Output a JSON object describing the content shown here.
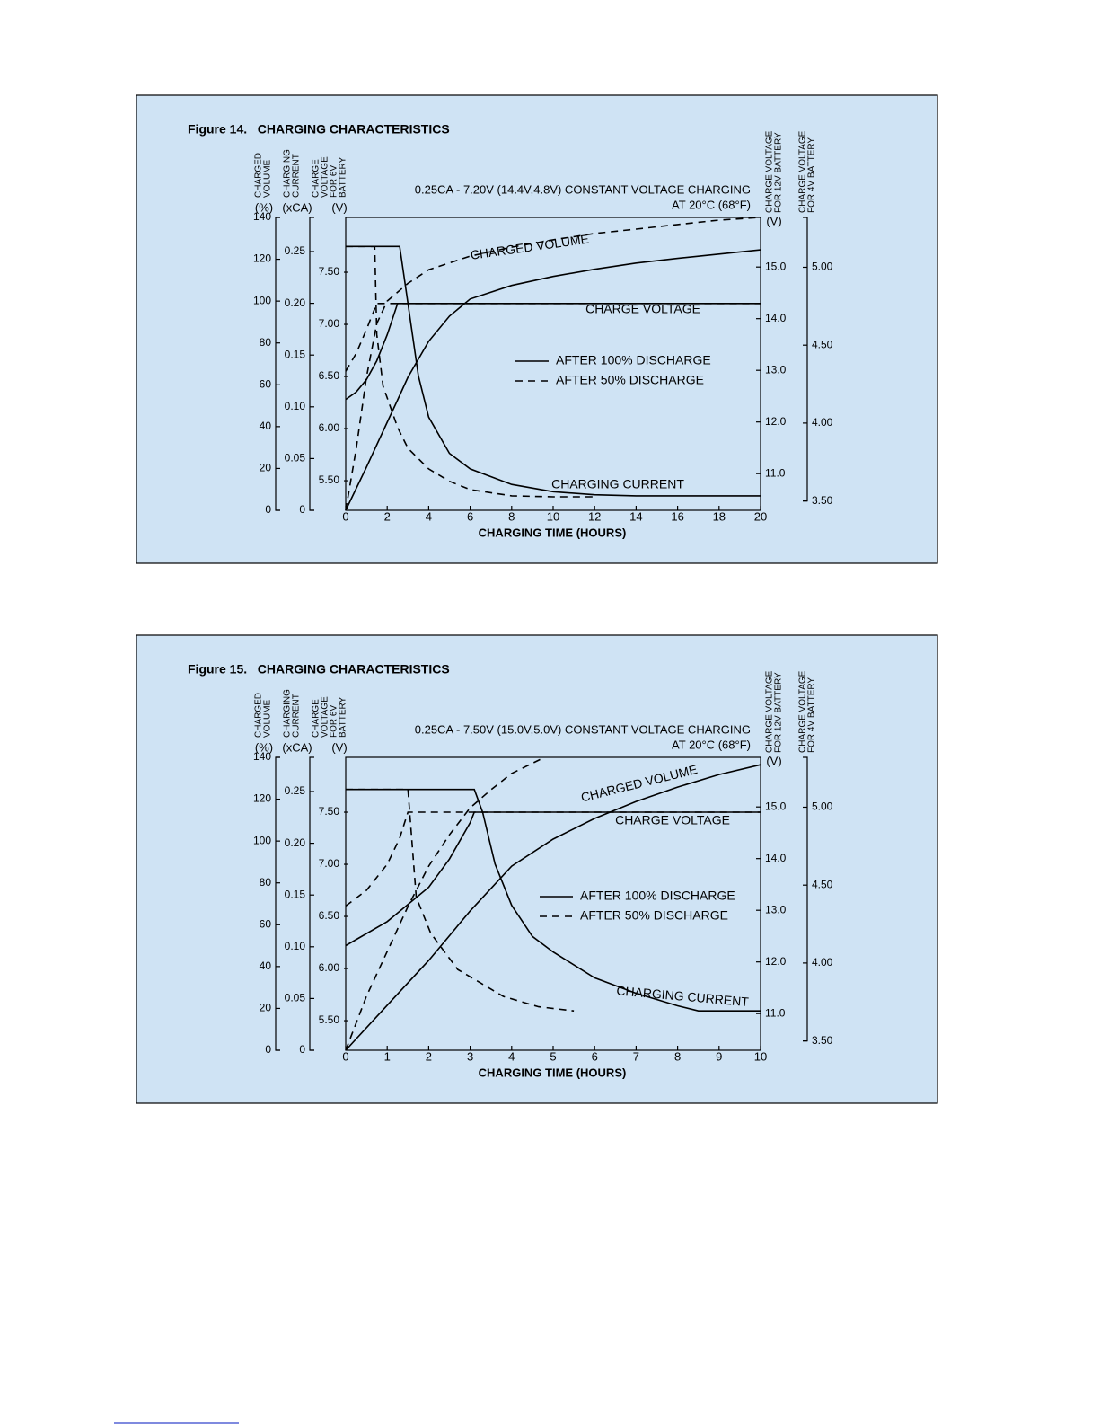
{
  "chart_data": [
    {
      "type": "line",
      "title": "Figure 14.   CHARGING CHARACTERISTICS",
      "subtitle": [
        "0.25CA - 7.20V (14.4V,4.8V) CONSTANT VOLTAGE CHARGING",
        "AT 20°C (68°F)"
      ],
      "xlabel": "CHARGING TIME (HOURS)",
      "xlim": [
        0,
        20
      ],
      "xticks": [
        0,
        2,
        4,
        6,
        8,
        10,
        12,
        14,
        16,
        18,
        20
      ],
      "axes": [
        {
          "label": [
            "CHARGED",
            "VOLUME"
          ],
          "unit": "(%)",
          "ylim": [
            0,
            140
          ],
          "yticks": [
            0,
            20,
            40,
            60,
            80,
            100,
            120,
            140
          ]
        },
        {
          "label": [
            "CHARGING",
            "CURRENT"
          ],
          "unit": "(xCA)",
          "ylim": [
            0,
            0.283
          ],
          "yticks": [
            0,
            0.05,
            {
              "value": 0.1,
              "label": "0.10"
            },
            0.15,
            {
              "value": 0.2,
              "label": "0.20"
            },
            0.25
          ]
        },
        {
          "label": [
            "CHARGE",
            "VOLTAGE",
            "FOR 6V",
            "BATTERY"
          ],
          "unit": "(V)",
          "ylim": [
            5.216,
            8.026
          ],
          "yticks": [
            {
              "value": 5.5,
              "label": "5.50"
            },
            {
              "value": 6,
              "label": "6.00"
            },
            {
              "value": 6.5,
              "label": "6.50"
            },
            {
              "value": 7,
              "label": "7.00"
            },
            {
              "value": 7.5,
              "label": "7.50"
            }
          ]
        },
        {
          "label": [
            "CHARGE VOLTAGE",
            "FOR 12V BATTERY"
          ],
          "unit": "(V)",
          "ylim": [
            10.29,
            15.96
          ],
          "yticks": [
            {
              "value": 11,
              "label": "11.0"
            },
            {
              "value": 12,
              "label": "12.0"
            },
            {
              "value": 13,
              "label": "13.0"
            },
            {
              "value": 14,
              "label": "14.0"
            },
            {
              "value": 15,
              "label": "15.0"
            }
          ]
        },
        {
          "label": [
            "CHARGE VOLTAGE",
            "FOR 4V BATTERY"
          ],
          "ylim": [
            3.44,
            5.32
          ],
          "yticks": [
            {
              "value": 3.5,
              "label": "3.50"
            },
            {
              "value": 4,
              "label": "4.00"
            },
            {
              "value": 4.5,
              "label": "4.50"
            },
            {
              "value": 5,
              "label": "5.00"
            }
          ]
        }
      ],
      "legend": [
        "AFTER 100% DISCHARGE",
        "AFTER 50% DISCHARGE"
      ],
      "legend_dash": [
        "solid",
        "dashed"
      ],
      "color": "#000000",
      "curves": [
        {
          "name": "CHARGED VOLUME",
          "axis": 0,
          "lines": [
            {
              "x": [
                0,
                1,
                2,
                2.5,
                3,
                4,
                5,
                6,
                8,
                10,
                12,
                14,
                16,
                18,
                20
              ],
              "values": [
                0,
                20.6,
                42.1,
                52.8,
                63.6,
                80.8,
                92.8,
                101,
                107.5,
                111.8,
                115.2,
                118.2,
                120.4,
                122.5,
                124.5
              ]
            },
            {
              "x": [
                0,
                0.5,
                1,
                1.5,
                2,
                3,
                4,
                6,
                8,
                10,
                12,
                14,
                16,
                18,
                20
              ],
              "values": [
                0,
                29.2,
                63.6,
                89.3,
                100,
                108.5,
                115,
                121.5,
                125.8,
                129.3,
                132.3,
                134.4,
                136.6,
                138.7,
                140
              ]
            }
          ]
        },
        {
          "name": "CHARGE VOLTAGE",
          "axis": 2,
          "lines": [
            {
              "x": [
                0,
                0.5,
                1,
                1.5,
                2,
                2.5,
                20
              ],
              "values": [
                6.28,
                6.35,
                6.47,
                6.65,
                6.9,
                7.2,
                7.2
              ]
            },
            {
              "x": [
                0,
                0.5,
                1,
                1.5,
                20
              ],
              "values": [
                6.55,
                6.72,
                6.95,
                7.2,
                7.2
              ]
            }
          ]
        },
        {
          "name": "CHARGING CURRENT",
          "axis": 1,
          "lines": [
            {
              "x": [
                0,
                2.6,
                3,
                3.5,
                4,
                5,
                6,
                8,
                10,
                12,
                14,
                16,
                18,
                20
              ],
              "values": [
                0.255,
                0.255,
                0.2,
                0.13,
                0.09,
                0.055,
                0.04,
                0.025,
                0.018,
                0.015,
                0.014,
                0.014,
                0.014,
                0.014
              ]
            },
            {
              "x": [
                0,
                1.4,
                1.5,
                1.8,
                2.5,
                3,
                4,
                5,
                6,
                8,
                10,
                12
              ],
              "values": [
                0.255,
                0.255,
                0.17,
                0.12,
                0.08,
                0.06,
                0.04,
                0.028,
                0.02,
                0.014,
                0.013,
                0.013
              ]
            }
          ]
        }
      ]
    },
    {
      "type": "line",
      "title": "Figure 15.   CHARGING CHARACTERISTICS",
      "subtitle": [
        "0.25CA - 7.50V (15.0V,5.0V) CONSTANT VOLTAGE CHARGING",
        "AT 20°C (68°F)"
      ],
      "xlabel": "CHARGING TIME (HOURS)",
      "xlim": [
        0,
        10
      ],
      "xticks": [
        0,
        1,
        2,
        3,
        4,
        5,
        6,
        7,
        8,
        9,
        10
      ],
      "axes": [
        {
          "label": [
            "CHARGED",
            "VOLUME"
          ],
          "unit": "(%)",
          "ylim": [
            0,
            140
          ],
          "yticks": [
            0,
            20,
            40,
            60,
            80,
            100,
            120,
            140
          ]
        },
        {
          "label": [
            "CHARGING",
            "CURRENT"
          ],
          "unit": "(xCA)",
          "ylim": [
            0,
            0.283
          ],
          "yticks": [
            0,
            0.05,
            {
              "value": 0.1,
              "label": "0.10"
            },
            0.15,
            {
              "value": 0.2,
              "label": "0.20"
            },
            0.25
          ]
        },
        {
          "label": [
            "CHARGE",
            "VOLTAGE",
            "FOR 6V",
            "BATTERY"
          ],
          "unit": "(V)",
          "ylim": [
            5.216,
            8.026
          ],
          "yticks": [
            {
              "value": 5.5,
              "label": "5.50"
            },
            {
              "value": 6,
              "label": "6.00"
            },
            {
              "value": 6.5,
              "label": "6.50"
            },
            {
              "value": 7,
              "label": "7.00"
            },
            {
              "value": 7.5,
              "label": "7.50"
            }
          ]
        },
        {
          "label": [
            "CHARGE VOLTAGE",
            "FOR 12V BATTERY"
          ],
          "unit": "(V)",
          "ylim": [
            10.29,
            15.96
          ],
          "yticks": [
            {
              "value": 11,
              "label": "11.0"
            },
            {
              "value": 12,
              "label": "12.0"
            },
            {
              "value": 13,
              "label": "13.0"
            },
            {
              "value": 14,
              "label": "14.0"
            },
            {
              "value": 15,
              "label": "15.0"
            }
          ]
        },
        {
          "label": [
            "CHARGE VOLTAGE",
            "FOR 4V BATTERY"
          ],
          "ylim": [
            3.44,
            5.32
          ],
          "yticks": [
            {
              "value": 3.5,
              "label": "3.50"
            },
            {
              "value": 4,
              "label": "4.00"
            },
            {
              "value": 4.5,
              "label": "4.50"
            },
            {
              "value": 5,
              "label": "5.00"
            }
          ]
        }
      ],
      "legend": [
        "AFTER 100% DISCHARGE",
        "AFTER 50% DISCHARGE"
      ],
      "legend_dash": [
        "solid",
        "dashed"
      ],
      "color": "#000000",
      "curves": [
        {
          "name": "CHARGED VOLUME",
          "axis": 0,
          "lines": [
            {
              "x": [
                0,
                1,
                2,
                3,
                4,
                5,
                6,
                7,
                8,
                9,
                10
              ],
              "values": [
                0,
                21.5,
                42.9,
                66.6,
                88,
                100.9,
                110.8,
                118.9,
                125.8,
                131.8,
                136.5
              ]
            },
            {
              "x": [
                0,
                0.5,
                1,
                1.5,
                2,
                2.5,
                3,
                3.5,
                4,
                4.75
              ],
              "values": [
                0,
                25.8,
                47.2,
                68.7,
                88,
                103,
                115.9,
                124.5,
                132.3,
                139.6
              ]
            }
          ]
        },
        {
          "name": "CHARGE VOLTAGE",
          "axis": 2,
          "lines": [
            {
              "x": [
                0,
                1,
                2,
                2.5,
                3,
                3.1,
                10
              ],
              "values": [
                6.22,
                6.45,
                6.78,
                7.05,
                7.4,
                7.5,
                7.5
              ]
            },
            {
              "x": [
                0,
                0.5,
                1,
                1.3,
                1.5,
                10
              ],
              "values": [
                6.6,
                6.75,
                7.0,
                7.25,
                7.5,
                7.5
              ]
            }
          ]
        },
        {
          "name": "CHARGING CURRENT",
          "axis": 1,
          "lines": [
            {
              "x": [
                0,
                3.1,
                3.3,
                3.6,
                4,
                4.5,
                5,
                6,
                7,
                8,
                8.5,
                10
              ],
              "values": [
                0.252,
                0.252,
                0.23,
                0.18,
                0.14,
                0.11,
                0.095,
                0.07,
                0.055,
                0.043,
                0.038,
                0.038
              ]
            },
            {
              "x": [
                0,
                1.5,
                1.7,
                2.05,
                2.7,
                3.8,
                4.65,
                5.5
              ],
              "values": [
                0.252,
                0.252,
                0.148,
                0.113,
                0.078,
                0.052,
                0.042,
                0.038
              ]
            }
          ]
        }
      ]
    }
  ]
}
